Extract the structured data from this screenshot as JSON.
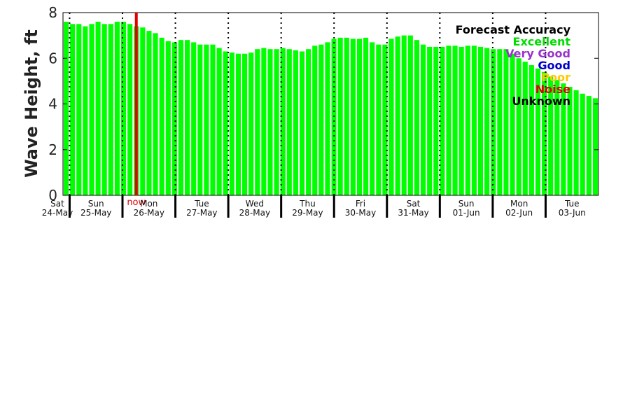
{
  "chart_data": {
    "type": "bar",
    "ylabel": "Wave Height, ft",
    "ylim": [
      0,
      8
    ],
    "yticks": [
      "0",
      "2",
      "4",
      "6",
      "8"
    ],
    "grid": false,
    "bar_color": "#00ff00",
    "now_label": "now",
    "now_color": "#e00000",
    "now_bar_index": 11.5,
    "days": [
      {
        "name": "Sat",
        "date": "24-May"
      },
      {
        "name": "Sun",
        "date": "25-May"
      },
      {
        "name": "Mon",
        "date": "26-May"
      },
      {
        "name": "Tue",
        "date": "27-May"
      },
      {
        "name": "Wed",
        "date": "28-May"
      },
      {
        "name": "Thu",
        "date": "29-May"
      },
      {
        "name": "Fri",
        "date": "30-May"
      },
      {
        "name": "Sat",
        "date": "31-May"
      },
      {
        "name": "Sun",
        "date": "01-Jun"
      },
      {
        "name": "Mon",
        "date": "02-Jun"
      },
      {
        "name": "Tue",
        "date": "03-Jun"
      }
    ],
    "values": [
      7.6,
      7.5,
      7.5,
      7.4,
      7.5,
      7.6,
      7.5,
      7.5,
      7.6,
      7.6,
      7.5,
      7.4,
      7.35,
      7.2,
      7.1,
      6.9,
      6.75,
      6.7,
      6.8,
      6.8,
      6.7,
      6.6,
      6.6,
      6.6,
      6.45,
      6.3,
      6.25,
      6.2,
      6.2,
      6.25,
      6.4,
      6.45,
      6.4,
      6.4,
      6.45,
      6.4,
      6.35,
      6.3,
      6.4,
      6.55,
      6.6,
      6.7,
      6.85,
      6.9,
      6.9,
      6.85,
      6.85,
      6.9,
      6.7,
      6.6,
      6.6,
      6.85,
      6.95,
      7.0,
      7.0,
      6.8,
      6.6,
      6.5,
      6.5,
      6.5,
      6.55,
      6.55,
      6.5,
      6.55,
      6.55,
      6.5,
      6.45,
      6.4,
      6.4,
      6.4,
      6.2,
      6.0,
      5.85,
      5.7,
      5.55,
      5.4,
      5.2,
      5.05,
      4.9,
      4.75,
      4.6,
      4.45,
      4.35,
      4.25
    ],
    "legend": {
      "title": "Forecast Accuracy",
      "placement": "top-right",
      "entries": [
        {
          "label": "Excellent",
          "color": "#00dd00"
        },
        {
          "label": "Very Good",
          "color": "#9932cc"
        },
        {
          "label": "Good",
          "color": "#0000cc"
        },
        {
          "label": "Poor",
          "color": "#ffc800"
        },
        {
          "label": "Noise",
          "color": "#e00000"
        },
        {
          "label": "Unknown",
          "color": "#000000"
        }
      ]
    }
  }
}
